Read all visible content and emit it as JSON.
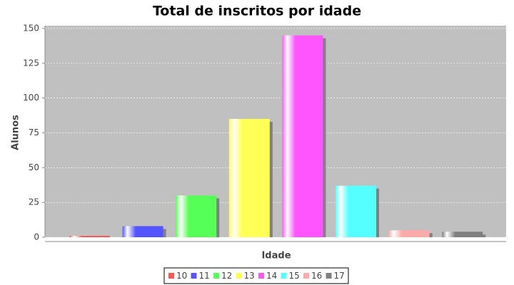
{
  "chart_data": {
    "type": "bar",
    "title": "Total de inscritos por idade",
    "x_label": "Idade",
    "y_label": "Alunos",
    "categories": [
      null
    ],
    "series": [
      {
        "name": "10",
        "color": "#ff5555",
        "values": [
          1
        ]
      },
      {
        "name": "11",
        "color": "#5555ff",
        "values": [
          8
        ]
      },
      {
        "name": "12",
        "color": "#55ff55",
        "values": [
          30
        ]
      },
      {
        "name": "13",
        "color": "#ffff55",
        "values": [
          85
        ]
      },
      {
        "name": "14",
        "color": "#ff55ff",
        "values": [
          145
        ]
      },
      {
        "name": "15",
        "color": "#55ffff",
        "values": [
          37
        ]
      },
      {
        "name": "16",
        "color": "#ffaaaa",
        "values": [
          5
        ]
      },
      {
        "name": "17",
        "color": "#808080",
        "values": [
          4
        ]
      }
    ],
    "ylim": [
      0,
      152
    ],
    "yticks": [
      0,
      25,
      50,
      75,
      100,
      125,
      150
    ],
    "grid": true,
    "legend": "bottom"
  }
}
